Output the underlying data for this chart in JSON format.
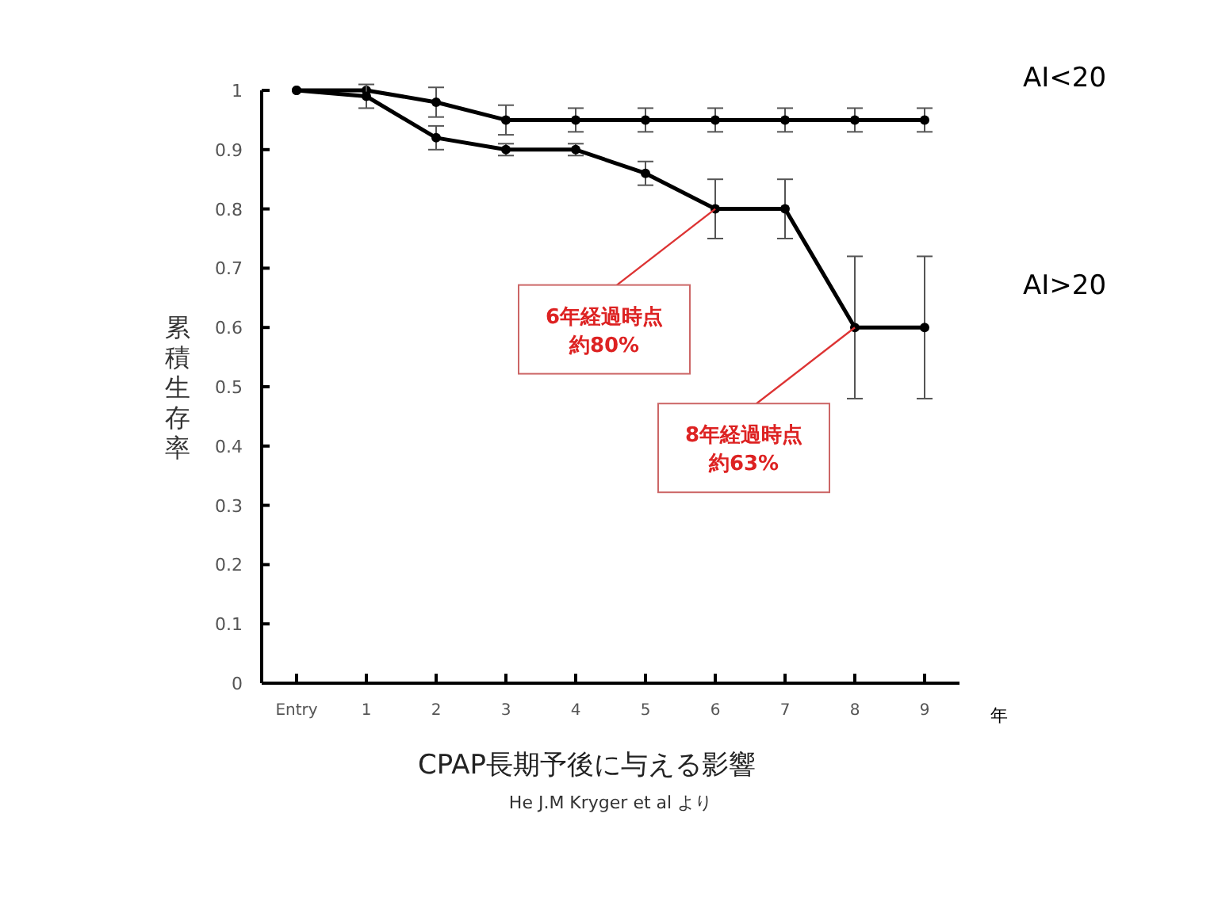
{
  "chart_data": {
    "type": "line",
    "title": "CPAP長期予後に与える影響",
    "ylabel": "累積生存率",
    "xlabel": "年",
    "categories": [
      "Entry",
      "1",
      "2",
      "3",
      "4",
      "5",
      "6",
      "7",
      "8",
      "9"
    ],
    "ylim": [
      0,
      1
    ],
    "yticks": [
      0,
      0.1,
      0.2,
      0.3,
      0.4,
      0.5,
      0.6,
      0.7,
      0.8,
      0.9,
      1
    ],
    "marker": "circle",
    "line_style": "solid",
    "series": [
      {
        "name": "AI<20",
        "color": "#000000",
        "values": [
          1,
          1,
          0.98,
          0.95,
          0.95,
          0.95,
          0.95,
          0.95,
          0.95,
          0.95
        ],
        "errors": [
          null,
          null,
          0.025,
          0.025,
          0.02,
          0.02,
          0.02,
          0.02,
          0.02,
          0.02
        ]
      },
      {
        "name": "AI>20",
        "color": "#000000",
        "values": [
          1,
          0.99,
          0.92,
          0.9,
          0.9,
          0.86,
          0.8,
          0.8,
          0.6,
          0.6
        ],
        "errors": [
          null,
          0.02,
          0.02,
          0.01,
          0.01,
          0.02,
          0.05,
          0.05,
          0.12,
          0.12
        ]
      }
    ],
    "annotations": [
      {
        "text": "6年経過時点約80%",
        "x": "6",
        "y": 0.8
      },
      {
        "text": "8年経過時点約63%",
        "x": "8",
        "y": 0.6
      },
      "He J.M Kryger et al より"
    ]
  }
}
